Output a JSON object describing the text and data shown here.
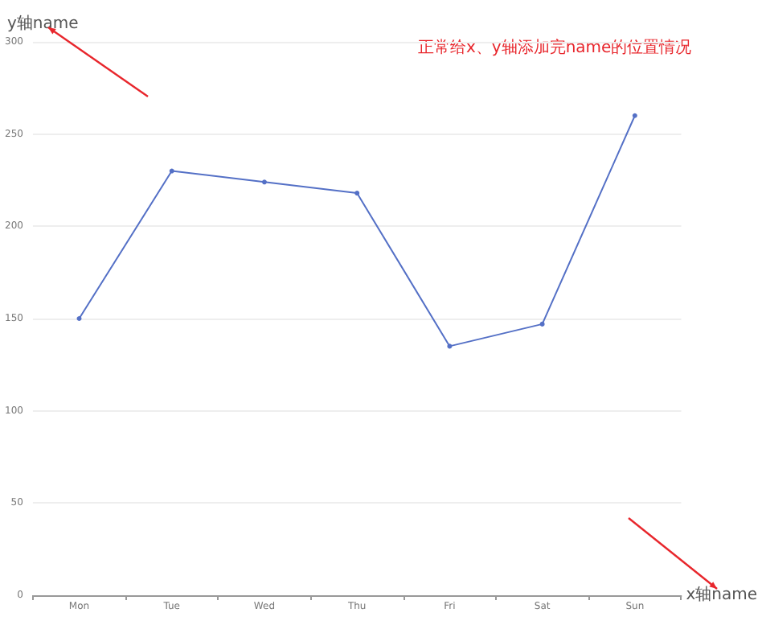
{
  "chart_data": {
    "type": "line",
    "xlabel": "x轴name",
    "ylabel": "y轴name",
    "annotations": [
      "正常给x、y轴添加完name的位置情况"
    ],
    "categories": [
      "Mon",
      "Tue",
      "Wed",
      "Thu",
      "Fri",
      "Sat",
      "Sun"
    ],
    "series": [
      {
        "color": "#5470c6",
        "values": [
          150,
          230,
          224,
          218,
          135,
          147,
          260
        ]
      }
    ],
    "ylim": [
      0,
      300
    ],
    "yticks": [
      0,
      50,
      100,
      150,
      200,
      250,
      300
    ],
    "grid": "y",
    "marker": "circle",
    "line_style": "solid"
  }
}
